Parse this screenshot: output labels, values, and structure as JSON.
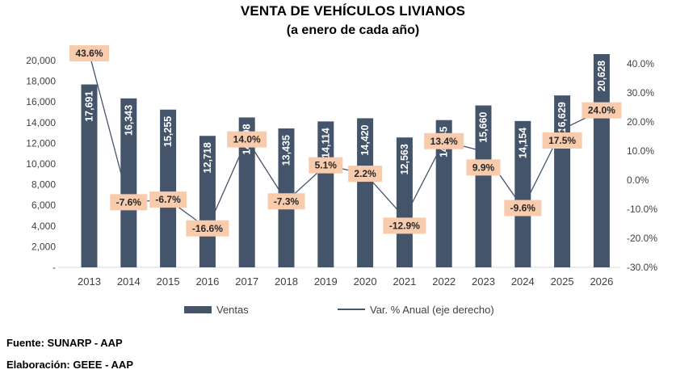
{
  "footer": {
    "source": "Fuente: SUNARP - AAP",
    "elaboration": "Elaboración: GEEE - AAP"
  },
  "colors": {
    "bar": "#44546A",
    "line": "#44546A",
    "pct_label_bg": "#F8CBAD",
    "pct_label_text": "#262626",
    "bar_value_text": "#FFFFFF",
    "axis_line": "#D9D9D9",
    "axis_text": "#404040"
  },
  "chart_data": {
    "type": "combo",
    "title": "VENTA DE VEHÍCULOS LIVIANOS",
    "subtitle": "(a enero de cada año)",
    "categories": [
      "2013",
      "2014",
      "2015",
      "2016",
      "2017",
      "2018",
      "2019",
      "2020",
      "2021",
      "2022",
      "2023",
      "2024",
      "2025",
      "2026"
    ],
    "series": [
      {
        "name": "Ventas",
        "chart": "bar",
        "axis": "left",
        "values": [
          17691,
          16343,
          15255,
          12718,
          14498,
          13435,
          14114,
          14420,
          12563,
          14245,
          15660,
          14154,
          16629,
          20628
        ],
        "labels": [
          "17,691",
          "16,343",
          "15,255",
          "12,718",
          "14,498",
          "13,435",
          "14,114",
          "14,420",
          "12,563",
          "14,245",
          "15,660",
          "14,154",
          "16,629",
          "20,628"
        ]
      },
      {
        "name": "Var. % Anual (eje derecho)",
        "chart": "line",
        "axis": "right",
        "values": [
          43.6,
          -7.6,
          -6.7,
          -16.6,
          14.0,
          -7.3,
          5.1,
          2.2,
          -12.9,
          13.4,
          9.9,
          -9.6,
          17.5,
          24.0
        ],
        "labels": [
          "43.6%",
          "-7.6%",
          "-6.7%",
          "-16.6%",
          "14.0%",
          "-7.3%",
          "5.1%",
          "2.2%",
          "-12.9%",
          "13.4%",
          "9.9%",
          "-9.6%",
          "17.5%",
          "24.0%"
        ]
      }
    ],
    "left_axis": {
      "min": 0,
      "max": 20000,
      "step": 2000,
      "tick_labels": [
        "20,000",
        "18,000",
        "16,000",
        "14,000",
        "12,000",
        "10,000",
        "8,000",
        "6,000",
        "4,000",
        "2,000",
        "-"
      ]
    },
    "right_axis": {
      "min": -30,
      "max": 40,
      "step": 10,
      "tick_labels": [
        "40.0%",
        "30.0%",
        "20.0%",
        "10.0%",
        "0.0%",
        "-10.0%",
        "-20.0%",
        "-30.0%"
      ]
    },
    "grid": false,
    "legend_position": "bottom",
    "pct_label_dy": [
      0,
      0,
      0,
      0,
      0,
      0,
      0,
      0,
      10,
      0,
      20,
      0,
      14,
      0
    ]
  }
}
